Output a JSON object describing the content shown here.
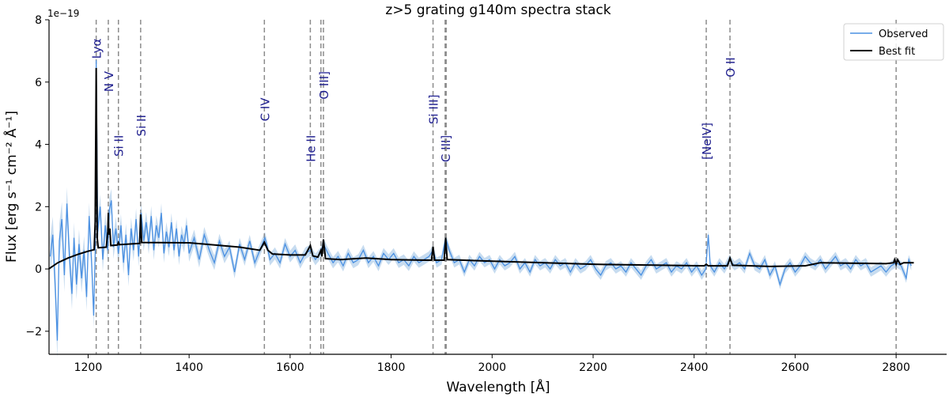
{
  "chart_data": {
    "type": "line",
    "title": "z>5 grating g140m spectra stack",
    "xlabel": "Wavelength [Å]",
    "ylabel": "Flux  [erg s⁻¹ cm⁻² Å⁻¹]",
    "y_offset_text": "1e−19",
    "xlim": [
      1122.6,
      2900
    ],
    "ylim": [
      -2.74,
      8
    ],
    "xticks": [
      1200,
      1400,
      1600,
      1800,
      2000,
      2200,
      2400,
      2600,
      2800
    ],
    "yticks": [
      -2,
      0,
      2,
      4,
      6,
      8
    ],
    "grid": false,
    "legend_placement": "top-right",
    "colors": {
      "observed": "#4a90e2",
      "observed_band": "#b9d3ec",
      "best_fit": "#000000",
      "line_marker": "#8c8c8c",
      "line_label": "#1f1f8f"
    },
    "series": [
      {
        "name": "Observed",
        "points": [
          [
            1125,
            0.4
          ],
          [
            1130,
            1.1
          ],
          [
            1135,
            -0.6
          ],
          [
            1139,
            -2.3
          ],
          [
            1143,
            0.9
          ],
          [
            1148,
            1.6
          ],
          [
            1153,
            -0.2
          ],
          [
            1158,
            2.1
          ],
          [
            1163,
            0.4
          ],
          [
            1168,
            -0.8
          ],
          [
            1172,
            1.0
          ],
          [
            1177,
            -0.5
          ],
          [
            1182,
            0.8
          ],
          [
            1187,
            -0.3
          ],
          [
            1192,
            0.6
          ],
          [
            1197,
            -0.9
          ],
          [
            1202,
            1.7
          ],
          [
            1207,
            0.2
          ],
          [
            1211,
            -1.5
          ],
          [
            1214,
            0.5
          ],
          [
            1216,
            6.7
          ],
          [
            1219,
            1.2
          ],
          [
            1224,
            2.0
          ],
          [
            1229,
            0.3
          ],
          [
            1234,
            1.4
          ],
          [
            1239,
            0.6
          ],
          [
            1242,
            1.9
          ],
          [
            1246,
            2.2
          ],
          [
            1250,
            0.7
          ],
          [
            1255,
            1.3
          ],
          [
            1260,
            0.5
          ],
          [
            1265,
            1.4
          ],
          [
            1270,
            0.2
          ],
          [
            1275,
            1.1
          ],
          [
            1280,
            -0.2
          ],
          [
            1285,
            1.3
          ],
          [
            1290,
            0.6
          ],
          [
            1295,
            1.6
          ],
          [
            1300,
            0.4
          ],
          [
            1305,
            1.8
          ],
          [
            1310,
            0.9
          ],
          [
            1315,
            1.5
          ],
          [
            1320,
            0.8
          ],
          [
            1325,
            1.7
          ],
          [
            1330,
            0.6
          ],
          [
            1335,
            1.4
          ],
          [
            1340,
            1.0
          ],
          [
            1345,
            1.8
          ],
          [
            1350,
            0.5
          ],
          [
            1355,
            1.2
          ],
          [
            1360,
            0.7
          ],
          [
            1365,
            1.5
          ],
          [
            1370,
            0.6
          ],
          [
            1375,
            1.3
          ],
          [
            1380,
            0.4
          ],
          [
            1385,
            1.1
          ],
          [
            1390,
            0.8
          ],
          [
            1395,
            1.4
          ],
          [
            1400,
            0.5
          ],
          [
            1410,
            1.0
          ],
          [
            1420,
            0.3
          ],
          [
            1430,
            1.1
          ],
          [
            1440,
            0.6
          ],
          [
            1450,
            0.2
          ],
          [
            1460,
            0.9
          ],
          [
            1470,
            0.4
          ],
          [
            1480,
            0.7
          ],
          [
            1490,
            -0.1
          ],
          [
            1500,
            0.8
          ],
          [
            1510,
            0.3
          ],
          [
            1520,
            0.9
          ],
          [
            1530,
            0.2
          ],
          [
            1540,
            0.6
          ],
          [
            1550,
            1.0
          ],
          [
            1555,
            0.7
          ],
          [
            1560,
            0.3
          ],
          [
            1570,
            0.5
          ],
          [
            1580,
            0.2
          ],
          [
            1590,
            0.8
          ],
          [
            1600,
            0.4
          ],
          [
            1610,
            0.6
          ],
          [
            1620,
            0.2
          ],
          [
            1630,
            0.5
          ],
          [
            1640,
            0.6
          ],
          [
            1650,
            0.3
          ],
          [
            1660,
            0.5
          ],
          [
            1666,
            0.8
          ],
          [
            1675,
            0.5
          ],
          [
            1685,
            0.2
          ],
          [
            1695,
            0.4
          ],
          [
            1705,
            0.1
          ],
          [
            1715,
            0.5
          ],
          [
            1725,
            0.2
          ],
          [
            1735,
            0.3
          ],
          [
            1745,
            0.6
          ],
          [
            1755,
            0.2
          ],
          [
            1765,
            0.4
          ],
          [
            1775,
            0.1
          ],
          [
            1785,
            0.5
          ],
          [
            1795,
            0.3
          ],
          [
            1805,
            0.5
          ],
          [
            1815,
            0.2
          ],
          [
            1825,
            0.3
          ],
          [
            1835,
            0.1
          ],
          [
            1845,
            0.4
          ],
          [
            1855,
            0.2
          ],
          [
            1865,
            0.3
          ],
          [
            1875,
            0.4
          ],
          [
            1883,
            0.6
          ],
          [
            1890,
            0.2
          ],
          [
            1900,
            0.3
          ],
          [
            1908,
            1.0
          ],
          [
            1915,
            0.6
          ],
          [
            1925,
            0.2
          ],
          [
            1935,
            0.3
          ],
          [
            1945,
            -0.1
          ],
          [
            1955,
            0.3
          ],
          [
            1965,
            0.1
          ],
          [
            1975,
            0.4
          ],
          [
            1985,
            0.2
          ],
          [
            1995,
            0.3
          ],
          [
            2005,
            0.0
          ],
          [
            2015,
            0.3
          ],
          [
            2025,
            0.1
          ],
          [
            2035,
            0.2
          ],
          [
            2045,
            0.4
          ],
          [
            2055,
            0.0
          ],
          [
            2065,
            0.2
          ],
          [
            2075,
            -0.1
          ],
          [
            2085,
            0.3
          ],
          [
            2095,
            0.1
          ],
          [
            2105,
            0.2
          ],
          [
            2115,
            0.0
          ],
          [
            2125,
            0.3
          ],
          [
            2135,
            0.1
          ],
          [
            2145,
            0.2
          ],
          [
            2155,
            -0.1
          ],
          [
            2165,
            0.2
          ],
          [
            2175,
            0.0
          ],
          [
            2185,
            0.1
          ],
          [
            2195,
            0.3
          ],
          [
            2205,
            0.0
          ],
          [
            2215,
            -0.2
          ],
          [
            2225,
            0.1
          ],
          [
            2235,
            0.2
          ],
          [
            2245,
            0.0
          ],
          [
            2255,
            0.1
          ],
          [
            2265,
            -0.1
          ],
          [
            2275,
            0.2
          ],
          [
            2285,
            0.0
          ],
          [
            2295,
            -0.2
          ],
          [
            2305,
            0.1
          ],
          [
            2315,
            0.3
          ],
          [
            2325,
            0.0
          ],
          [
            2335,
            0.1
          ],
          [
            2345,
            0.2
          ],
          [
            2355,
            -0.1
          ],
          [
            2365,
            0.1
          ],
          [
            2375,
            0.0
          ],
          [
            2385,
            0.2
          ],
          [
            2395,
            -0.1
          ],
          [
            2405,
            0.1
          ],
          [
            2415,
            -0.2
          ],
          [
            2423,
            0.0
          ],
          [
            2428,
            1.1
          ],
          [
            2432,
            0.1
          ],
          [
            2440,
            -0.1
          ],
          [
            2450,
            0.2
          ],
          [
            2460,
            0.0
          ],
          [
            2470,
            0.3
          ],
          [
            2480,
            0.1
          ],
          [
            2490,
            0.2
          ],
          [
            2500,
            0.0
          ],
          [
            2510,
            0.5
          ],
          [
            2520,
            0.1
          ],
          [
            2530,
            0.0
          ],
          [
            2540,
            0.3
          ],
          [
            2550,
            -0.2
          ],
          [
            2560,
            0.1
          ],
          [
            2570,
            -0.5
          ],
          [
            2580,
            0.0
          ],
          [
            2590,
            0.2
          ],
          [
            2600,
            -0.1
          ],
          [
            2610,
            0.1
          ],
          [
            2620,
            0.4
          ],
          [
            2630,
            0.2
          ],
          [
            2640,
            0.1
          ],
          [
            2650,
            0.3
          ],
          [
            2660,
            0.0
          ],
          [
            2670,
            0.2
          ],
          [
            2680,
            0.4
          ],
          [
            2690,
            0.1
          ],
          [
            2700,
            0.2
          ],
          [
            2710,
            0.0
          ],
          [
            2720,
            0.3
          ],
          [
            2730,
            0.1
          ],
          [
            2740,
            0.2
          ],
          [
            2750,
            -0.1
          ],
          [
            2760,
            0.0
          ],
          [
            2770,
            0.1
          ],
          [
            2780,
            -0.1
          ],
          [
            2790,
            0.1
          ],
          [
            2800,
            0.2
          ],
          [
            2810,
            0.1
          ],
          [
            2820,
            -0.3
          ],
          [
            2825,
            0.3
          ],
          [
            2830,
            0.1
          ]
        ],
        "uncertainty": [
          [
            1122,
            0.6
          ],
          [
            1216,
            0.4
          ],
          [
            1500,
            0.2
          ],
          [
            2000,
            0.15
          ],
          [
            2830,
            0.15
          ]
        ]
      },
      {
        "name": "Best fit",
        "points": [
          [
            1122,
            0.0
          ],
          [
            1140,
            0.2
          ],
          [
            1160,
            0.35
          ],
          [
            1180,
            0.47
          ],
          [
            1200,
            0.57
          ],
          [
            1212,
            0.62
          ],
          [
            1214,
            1.5
          ],
          [
            1216,
            6.45
          ],
          [
            1218,
            1.0
          ],
          [
            1220,
            0.68
          ],
          [
            1236,
            0.7
          ],
          [
            1239,
            1.2
          ],
          [
            1240,
            1.8
          ],
          [
            1241,
            1.1
          ],
          [
            1243,
            1.3
          ],
          [
            1245,
            0.75
          ],
          [
            1258,
            0.77
          ],
          [
            1260,
            0.85
          ],
          [
            1262,
            0.78
          ],
          [
            1302,
            0.82
          ],
          [
            1304,
            1.75
          ],
          [
            1306,
            0.85
          ],
          [
            1400,
            0.84
          ],
          [
            1500,
            0.7
          ],
          [
            1540,
            0.6
          ],
          [
            1549,
            0.86
          ],
          [
            1556,
            0.6
          ],
          [
            1565,
            0.48
          ],
          [
            1600,
            0.45
          ],
          [
            1630,
            0.45
          ],
          [
            1640,
            0.75
          ],
          [
            1645,
            0.42
          ],
          [
            1655,
            0.38
          ],
          [
            1661,
            0.6
          ],
          [
            1663,
            0.4
          ],
          [
            1666,
            0.95
          ],
          [
            1670,
            0.33
          ],
          [
            1700,
            0.3
          ],
          [
            1750,
            0.35
          ],
          [
            1800,
            0.3
          ],
          [
            1880,
            0.28
          ],
          [
            1883,
            0.72
          ],
          [
            1886,
            0.28
          ],
          [
            1905,
            0.28
          ],
          [
            1908,
            1.0
          ],
          [
            1911,
            0.3
          ],
          [
            2000,
            0.25
          ],
          [
            2200,
            0.15
          ],
          [
            2420,
            0.1
          ],
          [
            2424,
            0.15
          ],
          [
            2428,
            0.1
          ],
          [
            2466,
            0.1
          ],
          [
            2471,
            0.35
          ],
          [
            2476,
            0.12
          ],
          [
            2550,
            0.08
          ],
          [
            2620,
            0.1
          ],
          [
            2650,
            0.2
          ],
          [
            2780,
            0.17
          ],
          [
            2795,
            0.2
          ],
          [
            2797,
            0.3
          ],
          [
            2800,
            0.15
          ],
          [
            2803,
            0.3
          ],
          [
            2808,
            0.15
          ],
          [
            2815,
            0.2
          ],
          [
            2835,
            0.2
          ]
        ]
      }
    ],
    "emission_lines": [
      {
        "wavelength": 1216,
        "label": "Lyα",
        "label_top": 7.4
      },
      {
        "wavelength": 1240,
        "label": "N V",
        "label_top": 6.35
      },
      {
        "wavelength": 1260,
        "label": "Si II",
        "label_top": 4.3
      },
      {
        "wavelength": 1304,
        "label": "Si II",
        "label_top": 4.95
      },
      {
        "wavelength": 1549,
        "label": "C IV",
        "label_top": 5.5
      },
      {
        "wavelength": 1640,
        "label": "He II",
        "label_top": 4.3
      },
      {
        "wavelength": 1661,
        "label": ""
      },
      {
        "wavelength": 1666,
        "label": "O III]",
        "label_top": 6.35
      },
      {
        "wavelength": 1883,
        "label": "Si III]",
        "label_top": 5.6
      },
      {
        "wavelength": 1907,
        "label": "C III]",
        "label_top": 4.3
      },
      {
        "wavelength": 1909,
        "label": ""
      },
      {
        "wavelength": 2424,
        "label": "[NeIV]",
        "label_top": 4.7
      },
      {
        "wavelength": 2471,
        "label": "O II",
        "label_top": 6.8
      },
      {
        "wavelength": 2800,
        "label": ""
      }
    ]
  }
}
